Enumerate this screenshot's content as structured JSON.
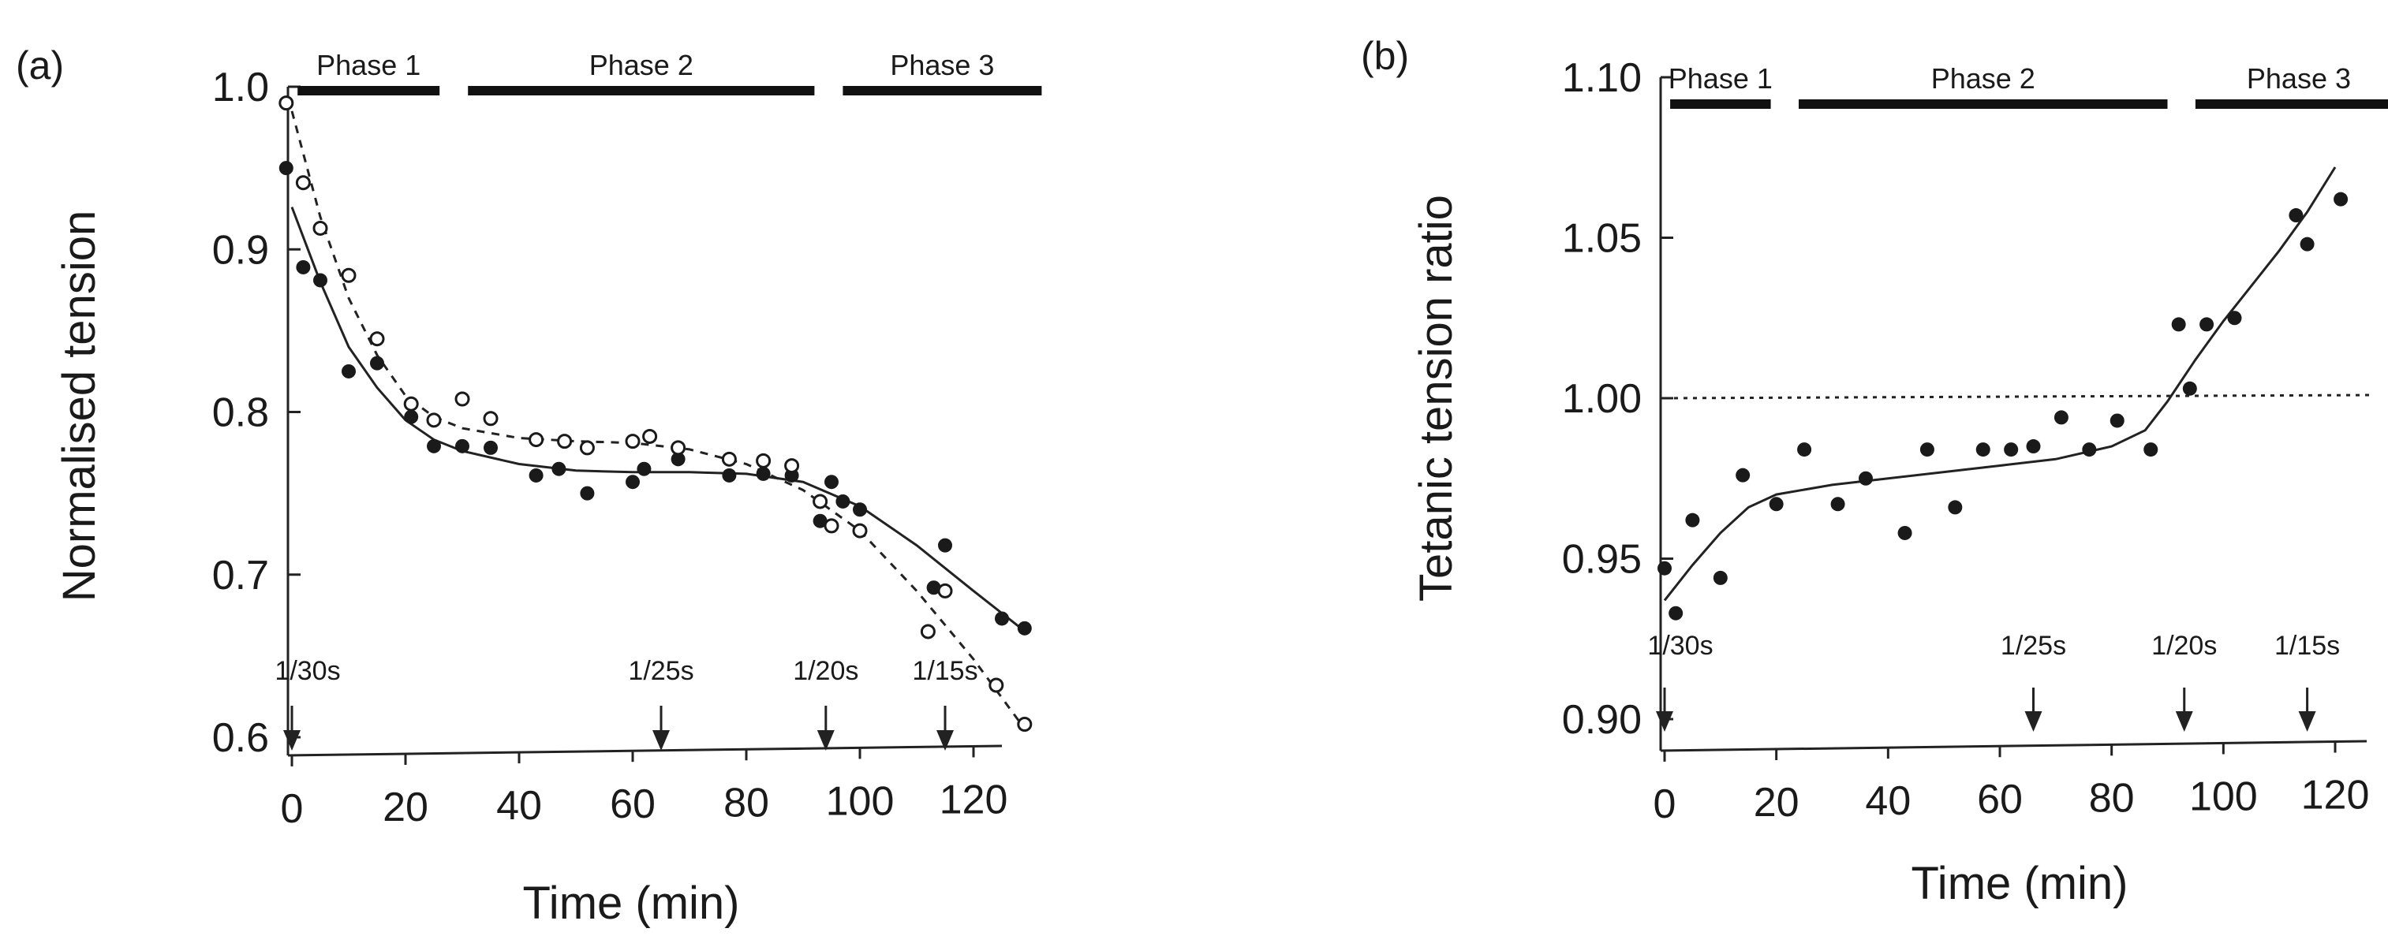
{
  "chart_data": [
    {
      "type": "scatter",
      "panel_label": "(a)",
      "xlabel": "Time (min)",
      "ylabel": "Normalised tension",
      "xlim": [
        0,
        130
      ],
      "ylim": [
        0.6,
        1.0
      ],
      "xticks": [
        0,
        20,
        40,
        60,
        80,
        100,
        120
      ],
      "xtick_labels": [
        "0",
        "20",
        "40",
        "60",
        "80",
        "100",
        "120"
      ],
      "yticks": [
        0.6,
        0.7,
        0.8,
        0.9,
        1.0
      ],
      "ytick_labels": [
        "0.6",
        "0.7",
        "0.8",
        "0.9",
        "1.0"
      ],
      "phases": [
        {
          "label": "Phase 1",
          "start": 1,
          "end": 26
        },
        {
          "label": "Phase 2",
          "start": 31,
          "end": 92
        },
        {
          "label": "Phase 3",
          "start": 97,
          "end": 132
        }
      ],
      "stimulus_arrows": [
        {
          "label": "1/30s",
          "x": 0
        },
        {
          "label": "1/25s",
          "x": 65
        },
        {
          "label": "1/20s",
          "x": 94
        },
        {
          "label": "1/15s",
          "x": 115
        }
      ],
      "series": [
        {
          "name": "filled",
          "marker": "filled",
          "points": [
            [
              -1,
              0.95
            ],
            [
              2,
              0.889
            ],
            [
              5,
              0.881
            ],
            [
              10,
              0.825
            ],
            [
              15,
              0.83
            ],
            [
              21,
              0.797
            ],
            [
              25,
              0.779
            ],
            [
              30,
              0.779
            ],
            [
              35,
              0.778
            ],
            [
              43,
              0.761
            ],
            [
              47,
              0.765
            ],
            [
              52,
              0.75
            ],
            [
              60,
              0.757
            ],
            [
              62,
              0.765
            ],
            [
              68,
              0.771
            ],
            [
              77,
              0.761
            ],
            [
              83,
              0.762
            ],
            [
              88,
              0.761
            ],
            [
              93,
              0.733
            ],
            [
              95,
              0.757
            ],
            [
              97,
              0.745
            ],
            [
              100,
              0.74
            ],
            [
              113,
              0.692
            ],
            [
              115,
              0.718
            ],
            [
              125,
              0.673
            ],
            [
              129,
              0.667
            ]
          ],
          "fit": [
            [
              0,
              0.926
            ],
            [
              5,
              0.88
            ],
            [
              10,
              0.84
            ],
            [
              15,
              0.815
            ],
            [
              20,
              0.795
            ],
            [
              25,
              0.783
            ],
            [
              30,
              0.776
            ],
            [
              40,
              0.768
            ],
            [
              50,
              0.764
            ],
            [
              60,
              0.763
            ],
            [
              70,
              0.763
            ],
            [
              80,
              0.762
            ],
            [
              90,
              0.757
            ],
            [
              100,
              0.742
            ],
            [
              110,
              0.718
            ],
            [
              120,
              0.69
            ],
            [
              128,
              0.668
            ]
          ]
        },
        {
          "name": "open",
          "marker": "open",
          "points": [
            [
              -1,
              0.99
            ],
            [
              2,
              0.941
            ],
            [
              5,
              0.913
            ],
            [
              10,
              0.884
            ],
            [
              15,
              0.845
            ],
            [
              21,
              0.805
            ],
            [
              25,
              0.795
            ],
            [
              30,
              0.808
            ],
            [
              35,
              0.796
            ],
            [
              43,
              0.783
            ],
            [
              48,
              0.782
            ],
            [
              52,
              0.778
            ],
            [
              60,
              0.782
            ],
            [
              63,
              0.785
            ],
            [
              68,
              0.778
            ],
            [
              77,
              0.771
            ],
            [
              83,
              0.77
            ],
            [
              88,
              0.767
            ],
            [
              93,
              0.745
            ],
            [
              95,
              0.73
            ],
            [
              100,
              0.727
            ],
            [
              112,
              0.665
            ],
            [
              115,
              0.69
            ],
            [
              124,
              0.632
            ],
            [
              129,
              0.608
            ]
          ],
          "fit": [
            [
              0,
              0.985
            ],
            [
              5,
              0.92
            ],
            [
              10,
              0.87
            ],
            [
              15,
              0.835
            ],
            [
              20,
              0.81
            ],
            [
              25,
              0.797
            ],
            [
              30,
              0.79
            ],
            [
              40,
              0.784
            ],
            [
              50,
              0.782
            ],
            [
              60,
              0.781
            ],
            [
              70,
              0.777
            ],
            [
              80,
              0.768
            ],
            [
              90,
              0.752
            ],
            [
              100,
              0.727
            ],
            [
              110,
              0.69
            ],
            [
              120,
              0.648
            ],
            [
              128,
              0.61
            ]
          ]
        }
      ]
    },
    {
      "type": "scatter",
      "panel_label": "(b)",
      "xlabel": "Time (min)",
      "ylabel": "Tetanic tension ratio",
      "xlim": [
        0,
        130
      ],
      "ylim": [
        0.9,
        1.1
      ],
      "xticks": [
        0,
        20,
        40,
        60,
        80,
        100,
        120
      ],
      "xtick_labels": [
        "0",
        "20",
        "40",
        "60",
        "80",
        "100",
        "120"
      ],
      "yticks": [
        0.9,
        0.95,
        1.0,
        1.05,
        1.1
      ],
      "ytick_labels": [
        "0.90",
        "0.95",
        "1.00",
        "1.05",
        "1.10"
      ],
      "reference_line": 1.0,
      "phases": [
        {
          "label": "Phase 1",
          "start": 1,
          "end": 19
        },
        {
          "label": "Phase 2",
          "start": 24,
          "end": 90
        },
        {
          "label": "Phase 3",
          "start": 95,
          "end": 132
        }
      ],
      "stimulus_arrows": [
        {
          "label": "1/30s",
          "x": 0
        },
        {
          "label": "1/25s",
          "x": 66
        },
        {
          "label": "1/20s",
          "x": 93
        },
        {
          "label": "1/15s",
          "x": 115
        }
      ],
      "series": [
        {
          "name": "filled",
          "marker": "filled",
          "points": [
            [
              0,
              0.947
            ],
            [
              2,
              0.933
            ],
            [
              5,
              0.962
            ],
            [
              10,
              0.944
            ],
            [
              14,
              0.976
            ],
            [
              20,
              0.967
            ],
            [
              25,
              0.984
            ],
            [
              31,
              0.967
            ],
            [
              36,
              0.975
            ],
            [
              43,
              0.958
            ],
            [
              47,
              0.984
            ],
            [
              52,
              0.966
            ],
            [
              57,
              0.984
            ],
            [
              62,
              0.984
            ],
            [
              66,
              0.985
            ],
            [
              71,
              0.994
            ],
            [
              76,
              0.984
            ],
            [
              81,
              0.993
            ],
            [
              87,
              0.984
            ],
            [
              92,
              1.023
            ],
            [
              94,
              1.003
            ],
            [
              97,
              1.023
            ],
            [
              102,
              1.025
            ],
            [
              113,
              1.057
            ],
            [
              115,
              1.048
            ],
            [
              121,
              1.062
            ]
          ],
          "fit": [
            [
              0,
              0.937
            ],
            [
              5,
              0.948
            ],
            [
              10,
              0.958
            ],
            [
              15,
              0.966
            ],
            [
              20,
              0.97
            ],
            [
              30,
              0.973
            ],
            [
              40,
              0.975
            ],
            [
              50,
              0.977
            ],
            [
              60,
              0.979
            ],
            [
              70,
              0.981
            ],
            [
              80,
              0.985
            ],
            [
              86,
              0.99
            ],
            [
              90,
              0.999
            ],
            [
              95,
              1.012
            ],
            [
              100,
              1.024
            ],
            [
              105,
              1.035
            ],
            [
              110,
              1.046
            ],
            [
              115,
              1.058
            ],
            [
              120,
              1.072
            ]
          ]
        }
      ]
    }
  ]
}
